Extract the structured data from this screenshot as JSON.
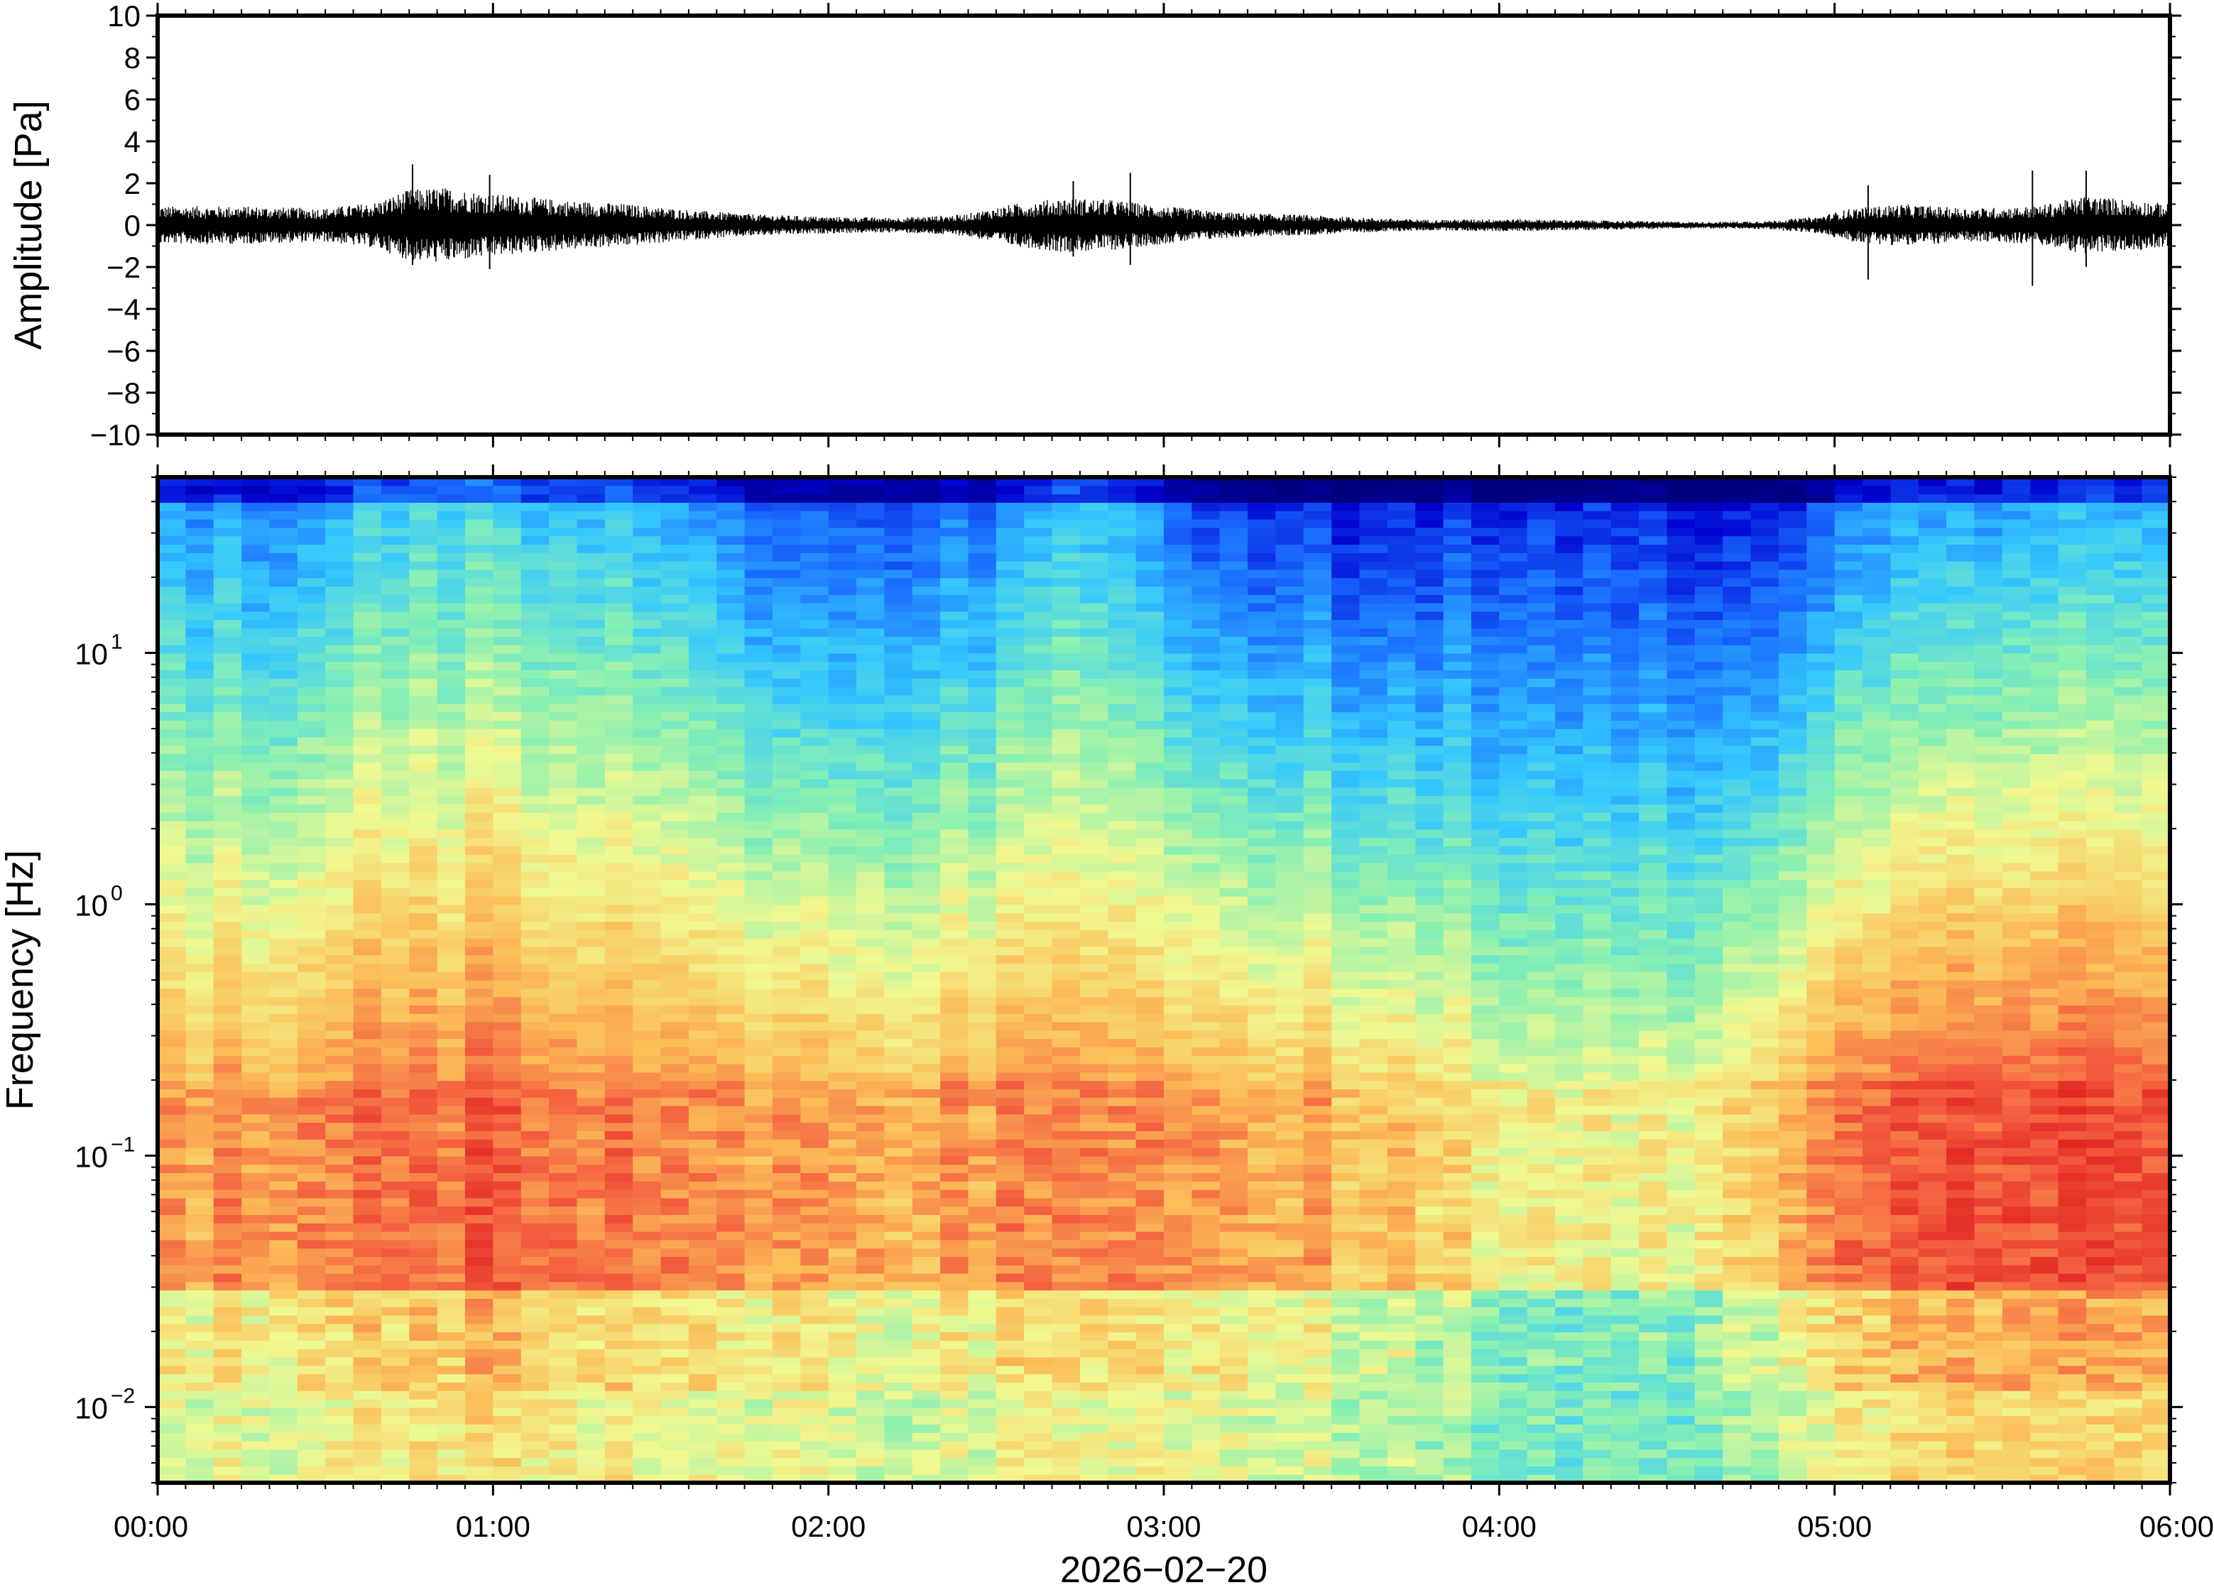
{
  "chart_data": [
    {
      "type": "line",
      "panel": "waveform",
      "ylabel": "Amplitude [Pa]",
      "ylim": [
        -10,
        10
      ],
      "yticks": [
        "10",
        "8",
        "6",
        "4",
        "2",
        "0",
        "−2",
        "−4",
        "−6",
        "−8",
        "−10"
      ],
      "ytick_values": [
        10,
        8,
        6,
        4,
        2,
        0,
        -2,
        -4,
        -6,
        -8,
        -10
      ],
      "x_hours": [
        0,
        1,
        2,
        3,
        4,
        5,
        6
      ],
      "envelope_hours": [
        0.0,
        0.25,
        0.5,
        0.65,
        0.75,
        0.85,
        1.0,
        1.2,
        1.4,
        1.6,
        1.8,
        2.0,
        2.2,
        2.4,
        2.55,
        2.7,
        2.85,
        3.0,
        3.2,
        3.4,
        3.6,
        3.8,
        4.0,
        4.2,
        4.4,
        4.6,
        4.8,
        4.95,
        5.05,
        5.2,
        5.4,
        5.6,
        5.75,
        5.9,
        6.0
      ],
      "envelope_pa": [
        0.9,
        0.9,
        0.8,
        1.1,
        1.7,
        1.8,
        1.5,
        1.2,
        1.0,
        0.7,
        0.5,
        0.4,
        0.35,
        0.5,
        1.0,
        1.3,
        1.2,
        0.9,
        0.6,
        0.5,
        0.35,
        0.25,
        0.3,
        0.25,
        0.2,
        0.15,
        0.2,
        0.4,
        0.8,
        1.0,
        0.8,
        0.9,
        1.4,
        1.2,
        1.0
      ],
      "peaks": [
        {
          "t": 0.76,
          "min": -1.9,
          "max": 2.9
        },
        {
          "t": 0.99,
          "min": -2.1,
          "max": 2.4
        },
        {
          "t": 2.73,
          "min": -1.5,
          "max": 2.1
        },
        {
          "t": 2.9,
          "min": -1.9,
          "max": 2.5
        },
        {
          "t": 5.1,
          "min": -2.6,
          "max": 1.9
        },
        {
          "t": 5.59,
          "min": -2.9,
          "max": 2.6
        },
        {
          "t": 5.75,
          "min": -2.0,
          "max": 2.6
        }
      ]
    },
    {
      "type": "heatmap",
      "panel": "spectrogram",
      "ylabel": "Frequency [Hz]",
      "yscale": "log",
      "ylim": [
        0.005,
        50
      ],
      "yticks": [
        {
          "value": 10,
          "base": "10",
          "exp": "1"
        },
        {
          "value": 1,
          "base": "10",
          "exp": "0"
        },
        {
          "value": 0.1,
          "base": "10",
          "exp": "−1"
        },
        {
          "value": 0.01,
          "base": "10",
          "exp": "−2"
        }
      ],
      "colormap": "jet-like (blue = low power, red = high power)",
      "colors": [
        "#00007e",
        "#0000d0",
        "#1a6cff",
        "#35c8ff",
        "#86f0b4",
        "#f0f890",
        "#fcbd58",
        "#f46040",
        "#e02020"
      ],
      "columns": 72,
      "time_range_hours": [
        0,
        6
      ],
      "high_freq_power_by_hour": {
        "hours": [
          0.0,
          0.3,
          0.6,
          0.8,
          1.0,
          1.3,
          1.6,
          1.9,
          2.2,
          2.5,
          2.7,
          2.9,
          3.1,
          3.4,
          3.7,
          4.0,
          4.3,
          4.6,
          4.9,
          5.1,
          5.4,
          5.7,
          6.0
        ],
        "level": [
          0.55,
          0.5,
          0.62,
          0.72,
          0.68,
          0.66,
          0.55,
          0.3,
          0.38,
          0.45,
          0.62,
          0.6,
          0.35,
          0.3,
          0.22,
          0.3,
          0.28,
          0.22,
          0.3,
          0.48,
          0.5,
          0.58,
          0.62
        ]
      },
      "low_freq_power_by_hour": {
        "hours": [
          0.0,
          0.5,
          1.0,
          1.5,
          2.0,
          2.5,
          3.0,
          3.5,
          4.0,
          4.5,
          5.0,
          5.5,
          6.0
        ],
        "level": [
          0.72,
          0.78,
          0.82,
          0.78,
          0.7,
          0.74,
          0.78,
          0.7,
          0.6,
          0.56,
          0.78,
          0.84,
          0.86
        ]
      }
    }
  ],
  "xaxis": {
    "tick_labels": [
      "00:00",
      "01:00",
      "02:00",
      "03:00",
      "04:00",
      "05:00",
      "06:00"
    ],
    "date_label": "2026−02−20",
    "range_hours": [
      0,
      6
    ]
  }
}
